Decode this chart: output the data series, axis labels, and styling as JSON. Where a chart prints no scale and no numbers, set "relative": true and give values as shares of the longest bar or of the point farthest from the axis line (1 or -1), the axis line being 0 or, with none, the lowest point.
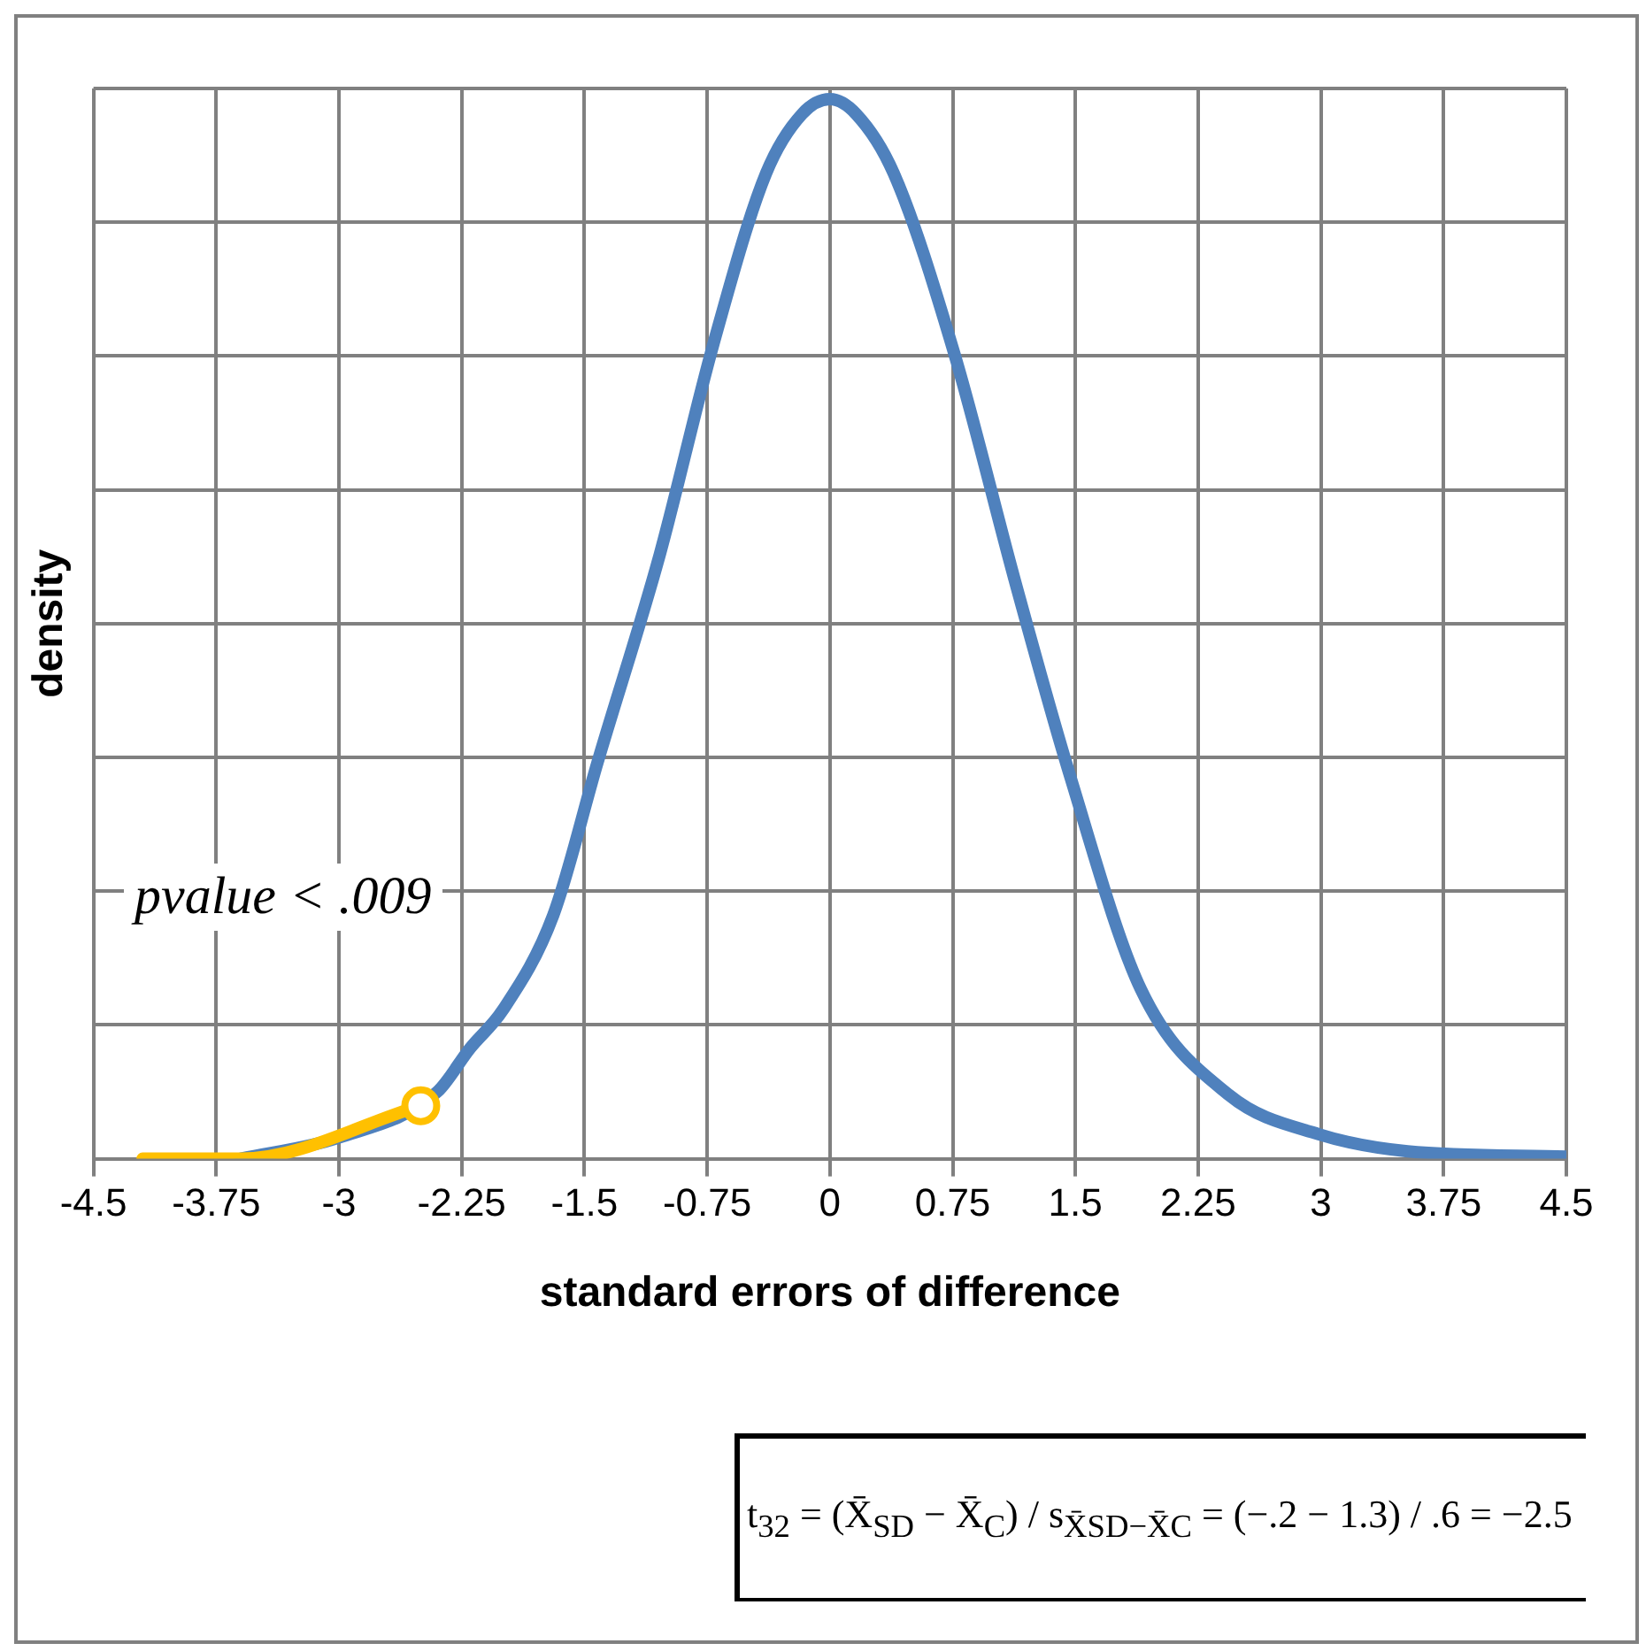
{
  "chart_data": {
    "type": "line",
    "relative": true,
    "xlabel": "standard errors of difference",
    "ylabel": "density",
    "xlim": [
      -4.5,
      4.5
    ],
    "xticks": [
      -4.5,
      -3.75,
      -3,
      -2.25,
      -1.5,
      -0.75,
      0,
      0.75,
      1.5,
      2.25,
      3,
      3.75,
      4.5
    ],
    "grid": true,
    "legend": false,
    "line_style": "solid",
    "series": [
      {
        "color": "#4f81bd",
        "marker": "none",
        "x": [
          -3.6,
          -3,
          -2.4,
          -2.2,
          -2,
          -1.69,
          -1.42,
          -1.04,
          -0.71,
          -0.39,
          -0.17,
          0,
          0.16,
          0.39,
          0.76,
          1.14,
          1.47,
          1.9,
          2.44,
          2.99,
          3.53,
          4.5
        ],
        "values": [
          0,
          0.02,
          0.063,
          0.104,
          0.14,
          0.23,
          0.374,
          0.57,
          0.77,
          0.93,
          0.986,
          1,
          0.986,
          0.93,
          0.76,
          0.54,
          0.36,
          0.16,
          0.06,
          0.023,
          0.007,
          0.002
        ]
      },
      {
        "color": "#ffc000",
        "marker": "none",
        "x": [
          -4.2,
          -3.6,
          -2.5
        ],
        "values": [
          0,
          0,
          0.05
        ]
      },
      {
        "type": "scatter",
        "color": "#ffc000",
        "marker": "circle",
        "x": [
          -2.5
        ],
        "values": [
          0.05
        ]
      }
    ],
    "annotations": [
      "pvalue < .009",
      "t$_{32}$ = (X̄$_{SD}$ − X̄$_{C}$) / s$_{X̄SD−X̄C}$ = (−.2 − 1.3) / .6 = −2.5"
    ]
  }
}
